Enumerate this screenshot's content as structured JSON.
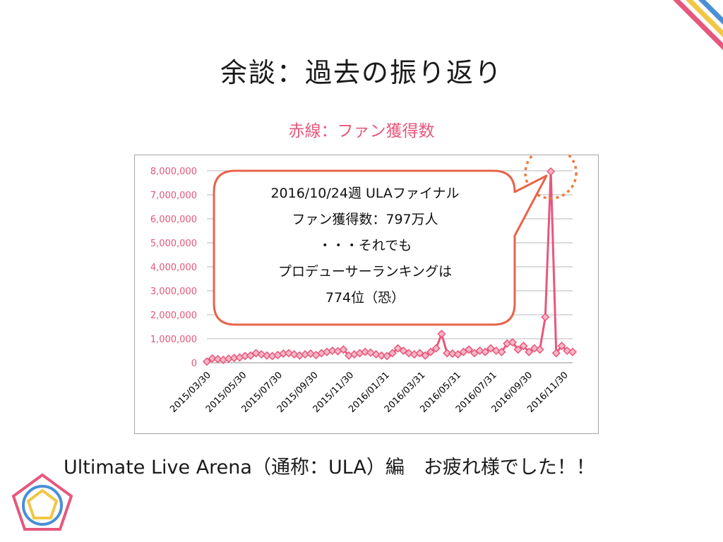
{
  "slide": {
    "title": "余談：過去の振り返り",
    "subtitle": "赤線：ファン獲得数",
    "footer": "Ultimate Live Arena（通称：ULA）編　お疲れ様でした！！"
  },
  "callout": {
    "lines": [
      "2016/10/24週 ULAファイナル",
      "ファン獲得数：797万人",
      "・・・それでも",
      "プロデューサーランキングは",
      "774位（恐）"
    ]
  },
  "colors": {
    "series": "#e7577c",
    "callout_border": "#e8634a",
    "axis_text": "#e7577c",
    "grid": "#b8b8b8",
    "highlight_ring": "#ef7a3c",
    "deco_red": "#e7577c",
    "deco_blue": "#4a8fd6",
    "deco_yellow": "#f2c744"
  },
  "chart_data": {
    "type": "line",
    "ylim": [
      0,
      8000000
    ],
    "yticks": [
      0,
      1000000,
      2000000,
      3000000,
      4000000,
      5000000,
      6000000,
      7000000,
      8000000
    ],
    "ytick_labels": [
      "0",
      "1,000,000",
      "2,000,000",
      "3,000,000",
      "4,000,000",
      "5,000,000",
      "6,000,000",
      "7,000,000",
      "8,000,000"
    ],
    "xtick_labels": [
      "2015/03/30",
      "2015/05/30",
      "2015/07/30",
      "2015/09/30",
      "2015/11/30",
      "2016/01/31",
      "2016/03/31",
      "2016/05/31",
      "2016/07/31",
      "2016/09/30",
      "2016/11/30"
    ],
    "grid": true,
    "legend": "none",
    "marker": "diamond",
    "series": [
      {
        "values": [
          50000,
          180000,
          150000,
          120000,
          170000,
          200000,
          220000,
          280000,
          300000,
          400000,
          350000,
          300000,
          280000,
          320000,
          380000,
          400000,
          350000,
          300000,
          350000,
          380000,
          320000,
          400000,
          450000,
          500000,
          480000,
          550000,
          300000,
          350000,
          400000,
          450000,
          420000,
          350000,
          300000,
          280000,
          400000,
          600000,
          500000,
          400000,
          350000,
          400000,
          300000,
          450000,
          600000,
          1200000,
          400000,
          380000,
          350000,
          450000,
          550000,
          400000,
          500000,
          450000,
          600000,
          500000,
          450000,
          800000,
          850000,
          550000,
          700000,
          450000,
          600000,
          550000,
          1900000,
          7970000,
          400000,
          700000,
          500000,
          450000
        ]
      }
    ],
    "annotations": [
      "2016/10/24週 ULAファイナル ファン獲得数：797万人"
    ]
  }
}
